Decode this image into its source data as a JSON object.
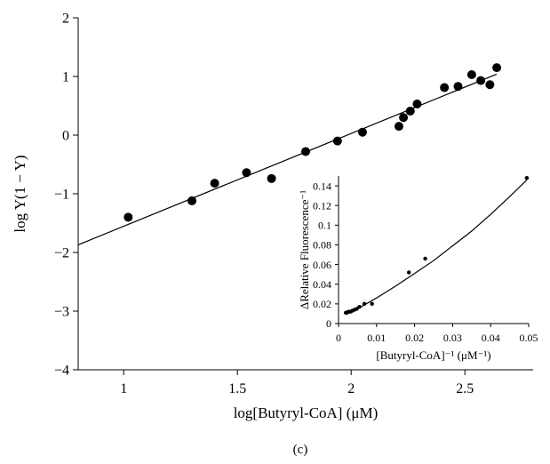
{
  "chart_data": [
    {
      "type": "scatter",
      "xlabel": "log[Butyryl-CoA] (μM)",
      "ylabel": "log Y(1 − Y)",
      "xlim": [
        0.8,
        2.8
      ],
      "ylim": [
        -4,
        2
      ],
      "x_ticks": [
        "1",
        "1.5",
        "2",
        "2.5"
      ],
      "y_ticks": [
        "2",
        "1",
        "0",
        "−1",
        "−2",
        "−3",
        "−4"
      ],
      "grid": false,
      "series": [
        {
          "points": [
            [
              1.02,
              -1.4
            ],
            [
              1.3,
              -1.12
            ],
            [
              1.4,
              -0.82
            ],
            [
              1.54,
              -0.64
            ],
            [
              1.65,
              -0.74
            ],
            [
              1.8,
              -0.28
            ],
            [
              1.94,
              -0.1
            ],
            [
              2.05,
              0.05
            ],
            [
              2.21,
              0.15
            ],
            [
              2.23,
              0.3
            ],
            [
              2.26,
              0.41
            ],
            [
              2.29,
              0.53
            ],
            [
              2.41,
              0.81
            ],
            [
              2.47,
              0.83
            ],
            [
              2.53,
              1.03
            ],
            [
              2.57,
              0.93
            ],
            [
              2.61,
              0.86
            ],
            [
              2.64,
              1.15
            ]
          ],
          "fit_line": [
            [
              0.8,
              -1.87
            ],
            [
              2.64,
              1.04
            ]
          ]
        }
      ],
      "panel_label": "(c)"
    },
    {
      "type": "scatter",
      "xlabel": "[Butyryl-CoA]⁻¹ (μM⁻¹)",
      "ylabel": "ΔRelative Fluorescence⁻¹",
      "xlim": [
        0,
        0.05
      ],
      "ylim": [
        0,
        0.15
      ],
      "x_ticks": [
        "0",
        "0.01",
        "0.02",
        "0.03",
        "0.04",
        "0.05"
      ],
      "y_ticks": [
        "0",
        "0.02",
        "0.04",
        "0.06",
        "0.08",
        "0.1",
        "0.12",
        "0.14"
      ],
      "grid": false,
      "series": [
        {
          "points": [
            [
              0.0019,
              0.011
            ],
            [
              0.0022,
              0.011
            ],
            [
              0.0026,
              0.012
            ],
            [
              0.0031,
              0.012
            ],
            [
              0.0036,
              0.013
            ],
            [
              0.0042,
              0.014
            ],
            [
              0.0048,
              0.015
            ],
            [
              0.0055,
              0.017
            ],
            [
              0.0068,
              0.02
            ],
            [
              0.0088,
              0.02
            ],
            [
              0.0185,
              0.052
            ],
            [
              0.0228,
              0.066
            ],
            [
              0.0495,
              0.148
            ]
          ],
          "fit_curve": [
            [
              0.0018,
              0.0095
            ],
            [
              0.005,
              0.015
            ],
            [
              0.01,
              0.026
            ],
            [
              0.015,
              0.038
            ],
            [
              0.02,
              0.051
            ],
            [
              0.025,
              0.064
            ],
            [
              0.03,
              0.079
            ],
            [
              0.035,
              0.094
            ],
            [
              0.04,
              0.111
            ],
            [
              0.045,
              0.129
            ],
            [
              0.0495,
              0.146
            ]
          ]
        }
      ]
    }
  ]
}
